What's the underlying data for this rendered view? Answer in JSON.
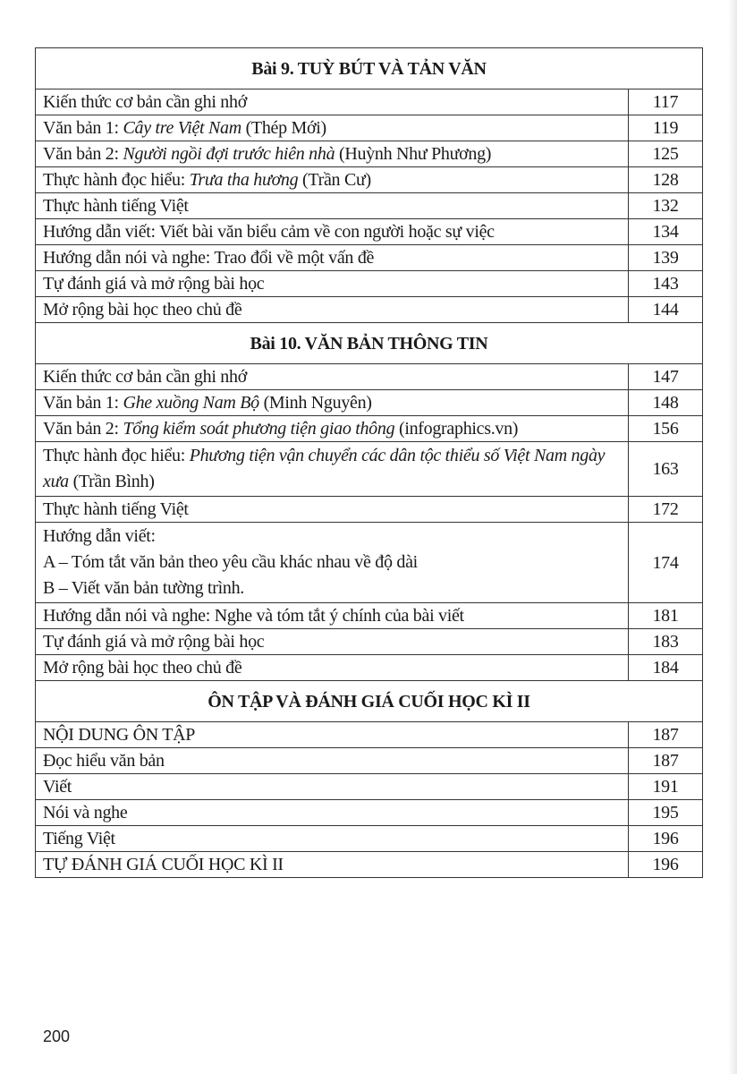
{
  "sections": [
    {
      "title": "Bài 9. TUỲ BÚT VÀ TẢN VĂN",
      "rows": [
        {
          "parts": [
            {
              "t": "Kiến thức cơ bản cần ghi nhớ"
            }
          ],
          "page": "117"
        },
        {
          "parts": [
            {
              "t": "Văn bản 1: "
            },
            {
              "t": "Cây tre Việt Nam",
              "i": true
            },
            {
              "t": " (Thép Mới)"
            }
          ],
          "page": "119"
        },
        {
          "parts": [
            {
              "t": "Văn bản 2: "
            },
            {
              "t": "Người ngồi đợi trước hiên nhà",
              "i": true
            },
            {
              "t": " (Huỳnh Như Phương)"
            }
          ],
          "page": "125"
        },
        {
          "parts": [
            {
              "t": "Thực hành đọc hiểu: "
            },
            {
              "t": "Trưa tha hương",
              "i": true
            },
            {
              "t": " (Trần Cư)"
            }
          ],
          "page": "128"
        },
        {
          "parts": [
            {
              "t": "Thực hành tiếng Việt"
            }
          ],
          "page": "132"
        },
        {
          "parts": [
            {
              "t": "Hướng dẫn viết: Viết bài văn biểu cảm về con người hoặc sự việc"
            }
          ],
          "page": "134"
        },
        {
          "parts": [
            {
              "t": "Hướng dẫn nói và nghe: Trao đổi về một vấn đề"
            }
          ],
          "page": "139"
        },
        {
          "parts": [
            {
              "t": "Tự đánh giá và mở rộng bài học"
            }
          ],
          "page": "143"
        },
        {
          "parts": [
            {
              "t": "Mở rộng bài học theo chủ đề"
            }
          ],
          "page": "144"
        }
      ]
    },
    {
      "title": "Bài 10. VĂN BẢN THÔNG TIN",
      "rows": [
        {
          "parts": [
            {
              "t": "Kiến thức cơ bản cần ghi nhớ"
            }
          ],
          "page": "147"
        },
        {
          "parts": [
            {
              "t": "Văn bản 1: "
            },
            {
              "t": "Ghe xuồng Nam Bộ",
              "i": true
            },
            {
              "t": " (Minh Nguyên)"
            }
          ],
          "page": "148"
        },
        {
          "parts": [
            {
              "t": "Văn bản 2: "
            },
            {
              "t": "Tổng kiểm soát phương tiện giao thông",
              "i": true
            },
            {
              "t": " (infographics.vn)"
            }
          ],
          "page": "156"
        },
        {
          "parts": [
            {
              "t": "Thực hành đọc hiểu: "
            },
            {
              "t": "Phương tiện vận chuyển các dân tộc thiểu số Việt Nam ngày xưa",
              "i": true
            },
            {
              "t": " (Trần Bình)"
            }
          ],
          "page": "163"
        },
        {
          "parts": [
            {
              "t": "Thực hành tiếng Việt"
            }
          ],
          "page": "172"
        },
        {
          "lines": [
            "Hướng dẫn viết:",
            "A – Tóm tắt văn bản theo yêu cầu khác nhau về độ dài",
            "B – Viết văn bản tường trình."
          ],
          "page": "174"
        },
        {
          "parts": [
            {
              "t": "Hướng dẫn nói và nghe: Nghe và tóm tắt ý chính của bài viết"
            }
          ],
          "page": "181"
        },
        {
          "parts": [
            {
              "t": "Tự đánh giá và mở rộng bài học"
            }
          ],
          "page": "183"
        },
        {
          "parts": [
            {
              "t": "Mở rộng bài học theo chủ đề"
            }
          ],
          "page": "184"
        }
      ]
    },
    {
      "title": "ÔN TẬP VÀ ĐÁNH GIÁ CUỐI HỌC KÌ II",
      "rows": [
        {
          "parts": [
            {
              "t": "NỘI DUNG ÔN TẬP"
            }
          ],
          "page": "187"
        },
        {
          "parts": [
            {
              "t": "Đọc hiểu văn bản"
            }
          ],
          "page": "187"
        },
        {
          "parts": [
            {
              "t": "Viết"
            }
          ],
          "page": "191"
        },
        {
          "parts": [
            {
              "t": "Nói và nghe"
            }
          ],
          "page": "195"
        },
        {
          "parts": [
            {
              "t": "Tiếng Việt"
            }
          ],
          "page": "196"
        },
        {
          "parts": [
            {
              "t": "TỰ ĐÁNH GIÁ CUỐI HỌC KÌ II"
            }
          ],
          "page": "196"
        }
      ]
    }
  ],
  "page_number": "200"
}
